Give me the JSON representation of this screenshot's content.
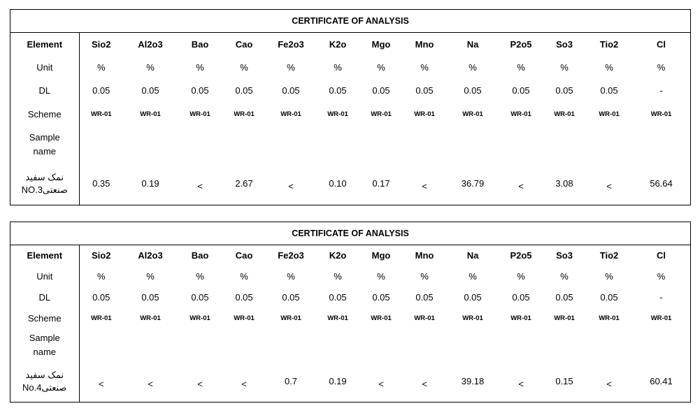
{
  "certificates": [
    {
      "title": "CERTIFICATE OF ANALYSIS",
      "labels": {
        "element": "Element",
        "unit": "Unit",
        "dl": "DL",
        "scheme": "Scheme",
        "sample_name_line1": "Sample",
        "sample_name_line2": "name",
        "sample_line1": "نمک سفید",
        "sample_line2": "صنعتیNO.3"
      },
      "elements": [
        "Sio2",
        "Al2o3",
        "Bao",
        "Cao",
        "Fe2o3",
        "K2o",
        "Mgo",
        "Mno",
        "Na",
        "P2o5",
        "So3",
        "Tio2",
        "Cl"
      ],
      "units": [
        "%",
        "%",
        "%",
        "%",
        "%",
        "%",
        "%",
        "%",
        "%",
        "%",
        "%",
        "%",
        "%"
      ],
      "dl": [
        "0.05",
        "0.05",
        "0.05",
        "0.05",
        "0.05",
        "0.05",
        "0.05",
        "0.05",
        "0.05",
        "0.05",
        "0.05",
        "0.05",
        "-"
      ],
      "scheme": [
        "WR-01",
        "WR-01",
        "WR-01",
        "WR-01",
        "WR-01",
        "WR-01",
        "WR-01",
        "WR-01",
        "WR-01",
        "WR-01",
        "WR-01",
        "WR-01",
        "WR-01"
      ],
      "values": [
        "0.35",
        "0.19",
        "<",
        "2.67",
        "<",
        "0.10",
        "0.17",
        "<",
        "36.79",
        "<",
        "3.08",
        "<",
        "56.64"
      ]
    },
    {
      "title": "CERTIFICATE OF ANALYSIS",
      "labels": {
        "element": "Element",
        "unit": "Unit",
        "dl": "DL",
        "scheme": "Scheme",
        "sample_name_line1": "Sample",
        "sample_name_line2": "name",
        "sample_line1": "نمک سفید",
        "sample_line2": "صنعتیNo.4"
      },
      "elements": [
        "Sio2",
        "Al2o3",
        "Bao",
        "Cao",
        "Fe2o3",
        "K2o",
        "Mgo",
        "Mno",
        "Na",
        "P2o5",
        "So3",
        "Tio2",
        "Cl"
      ],
      "units": [
        "%",
        "%",
        "%",
        "%",
        "%",
        "%",
        "%",
        "%",
        "%",
        "%",
        "%",
        "%",
        "%"
      ],
      "dl": [
        "0.05",
        "0.05",
        "0.05",
        "0.05",
        "0.05",
        "0.05",
        "0.05",
        "0.05",
        "0.05",
        "0.05",
        "0.05",
        "0.05",
        "-"
      ],
      "scheme": [
        "WR-01",
        "WR-01",
        "WR-01",
        "WR-01",
        "WR-01",
        "WR-01",
        "WR-01",
        "WR-01",
        "WR-01",
        "WR-01",
        "WR-01",
        "WR-01",
        "WR-01"
      ],
      "values": [
        "<",
        "<",
        "<",
        "<",
        "0.7",
        "0.19",
        "<",
        "<",
        "39.18",
        "<",
        "0.15",
        "<",
        "60.41"
      ]
    }
  ]
}
